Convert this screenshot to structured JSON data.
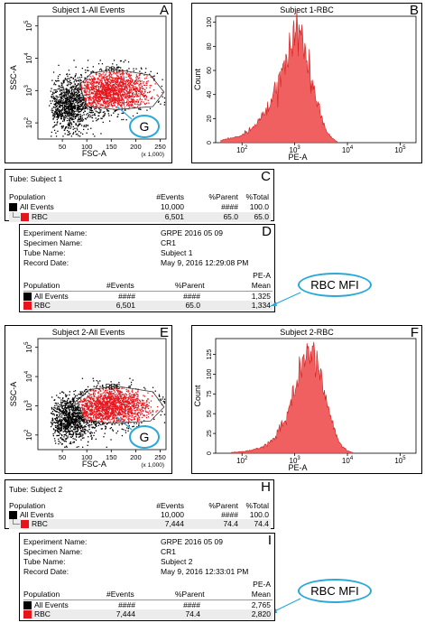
{
  "panel_letters": [
    "A",
    "B",
    "C",
    "D",
    "E",
    "F",
    "H",
    "I"
  ],
  "gate_label": "G",
  "mfi_label": "RBC MFI",
  "dot_plot": {
    "type": "scatter",
    "gate_name": "RBC",
    "xlabel": "FSC-A",
    "ylabel": "SSC-A",
    "x_scale_note": "(x 1,000)",
    "x_ticks": [
      "50",
      "100",
      "150",
      "200",
      "250"
    ],
    "y_ticks": [
      "10",
      "10",
      "10",
      "10"
    ],
    "y_exps": [
      "2",
      "3",
      "4",
      "5"
    ]
  },
  "histogram": {
    "xlabel": "PE-A",
    "ylabel": "Count",
    "x_ticks": [
      "10",
      "10",
      "10",
      "10"
    ],
    "x_exps": [
      "2",
      "3",
      "4",
      "5"
    ]
  },
  "subjects": [
    {
      "dot_title": "Subject 1-All Events",
      "hist_title": "Subject 1-RBC",
      "hist_y_ticks": [
        "0",
        "20",
        "40",
        "60",
        "80",
        "100"
      ],
      "tube_label": "Tube:  Subject 1",
      "pop_header": "Population",
      "events_header": "#Events",
      "parent_header": "%Parent",
      "total_header": "%Total",
      "rows": [
        {
          "name": "All Events",
          "events": "10,000",
          "parent": "####",
          "total": "100.0"
        },
        {
          "name": "RBC",
          "events": "6,501",
          "parent": "65.0",
          "total": "65.0"
        }
      ],
      "experiment_name_label": "Experiment Name:",
      "experiment_name": "GRPE 2016 05 09",
      "specimen_label": "Specimen Name:",
      "specimen": "CR1",
      "tube_name_label": "Tube Name:",
      "tube_name": "Subject 1",
      "record_date_label": "Record Date:",
      "record_date": "May 9, 2016 12:29:08 PM",
      "mean_header_top": "PE-A",
      "mean_header": "Mean",
      "stat_rows": [
        {
          "name": "All Events",
          "events": "####",
          "parent": "####",
          "mean": "1,325"
        },
        {
          "name": "RBC",
          "events": "6,501",
          "parent": "65.0",
          "mean": "1,334"
        }
      ]
    },
    {
      "dot_title": "Subject 2-All Events",
      "hist_title": "Subject 2-RBC",
      "hist_y_ticks": [
        "0",
        "25",
        "50",
        "75",
        "100",
        "125"
      ],
      "tube_label": "Tube:  Subject 2",
      "pop_header": "Population",
      "events_header": "#Events",
      "parent_header": "%Parent",
      "total_header": "%Total",
      "rows": [
        {
          "name": "All Events",
          "events": "10,000",
          "parent": "####",
          "total": "100.0"
        },
        {
          "name": "RBC",
          "events": "7,444",
          "parent": "74.4",
          "total": "74.4"
        }
      ],
      "experiment_name_label": "Experiment Name:",
      "experiment_name": "GRPE 2016 05 09",
      "specimen_label": "Specimen Name:",
      "specimen": "CR1",
      "tube_name_label": "Tube Name:",
      "tube_name": "Subject 2",
      "record_date_label": "Record Date:",
      "record_date": "May 9, 2016 12:33:01 PM",
      "mean_header_top": "PE-A",
      "mean_header": "Mean",
      "stat_rows": [
        {
          "name": "All Events",
          "events": "####",
          "parent": "####",
          "mean": "2,765"
        },
        {
          "name": "RBC",
          "events": "7,444",
          "parent": "74.4",
          "mean": "2,820"
        }
      ]
    }
  ],
  "colors": {
    "rbc": "#e8141c",
    "all_events": "#000000",
    "histogram": "#f06060",
    "callout": "#2aa8d8"
  },
  "chart_data": [
    {
      "type": "scatter",
      "title": "Subject 1-All Events",
      "xlabel": "FSC-A",
      "ylabel": "SSC-A",
      "xlim": [
        0,
        262
      ],
      "ylim_log10": [
        1.5,
        5.3
      ],
      "series": [
        {
          "name": "All Events",
          "cluster_center": [
            75,
            700
          ],
          "note": "black dots"
        },
        {
          "name": "RBC",
          "cluster_center": [
            150,
            1000
          ],
          "note": "red dots inside gate"
        }
      ],
      "gate": {
        "name": "RBC",
        "polygon": [
          [
            85,
            1500
          ],
          [
            110,
            3500
          ],
          [
            160,
            4500
          ],
          [
            230,
            3000
          ],
          [
            258,
            900
          ],
          [
            235,
            320
          ],
          [
            160,
            260
          ],
          [
            100,
            320
          ]
        ]
      }
    },
    {
      "type": "area",
      "title": "Subject 1-RBC",
      "xlabel": "PE-A",
      "ylabel": "Count",
      "x_log": true,
      "xlim_log10": [
        1.5,
        5.3
      ],
      "ylim": [
        0,
        105
      ],
      "x_log10": [
        1.6,
        1.8,
        2.0,
        2.2,
        2.4,
        2.6,
        2.8,
        2.9,
        3.0,
        3.1,
        3.2,
        3.3,
        3.4,
        3.5,
        3.6,
        3.7,
        3.8
      ],
      "values": [
        2,
        4,
        6,
        12,
        22,
        38,
        62,
        78,
        95,
        88,
        75,
        55,
        38,
        22,
        10,
        4,
        1
      ]
    },
    {
      "type": "scatter",
      "title": "Subject 2-All Events",
      "xlabel": "FSC-A",
      "ylabel": "SSC-A",
      "xlim": [
        0,
        262
      ],
      "ylim_log10": [
        1.5,
        5.3
      ],
      "series": [
        {
          "name": "All Events",
          "cluster_center": [
            75,
            700
          ],
          "note": "black dots"
        },
        {
          "name": "RBC",
          "cluster_center": [
            150,
            1000
          ],
          "note": "red dots inside gate"
        }
      ],
      "gate": {
        "name": "RBC",
        "polygon": [
          [
            80,
            1500
          ],
          [
            105,
            3600
          ],
          [
            165,
            4600
          ],
          [
            235,
            3000
          ],
          [
            258,
            900
          ],
          [
            230,
            300
          ],
          [
            150,
            250
          ],
          [
            95,
            330
          ]
        ]
      }
    },
    {
      "type": "area",
      "title": "Subject 2-RBC",
      "xlabel": "PE-A",
      "ylabel": "Count",
      "x_log": true,
      "xlim_log10": [
        1.5,
        5.3
      ],
      "ylim": [
        0,
        145
      ],
      "x_log10": [
        1.8,
        2.0,
        2.2,
        2.4,
        2.6,
        2.8,
        3.0,
        3.1,
        3.2,
        3.3,
        3.4,
        3.5,
        3.6,
        3.7,
        3.8,
        3.9,
        4.0,
        4.1
      ],
      "values": [
        1,
        2,
        4,
        8,
        18,
        40,
        80,
        105,
        125,
        130,
        118,
        98,
        70,
        42,
        20,
        8,
        3,
        1
      ]
    }
  ]
}
